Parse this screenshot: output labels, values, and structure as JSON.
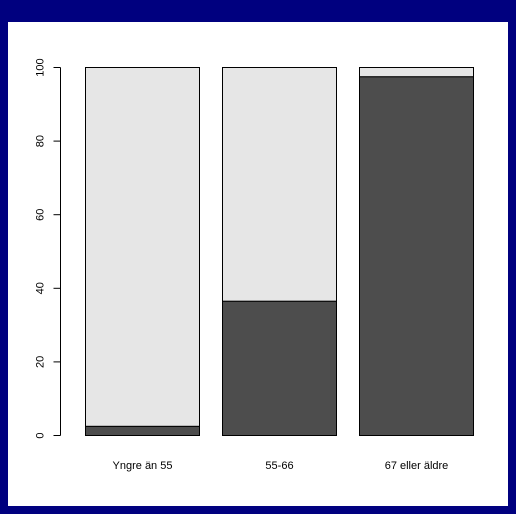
{
  "chart_data": {
    "type": "bar",
    "stacked": true,
    "percent_stacked": true,
    "categories": [
      "Yngre än 55",
      "55-66",
      "67 eller äldre"
    ],
    "series": [
      {
        "values": [
          2.5,
          36.5,
          97.5
        ],
        "color": "#4d4d4d"
      },
      {
        "values": [
          97.5,
          63.5,
          2.5
        ],
        "color": "#e6e6e6"
      }
    ],
    "title": "",
    "xlabel": "",
    "ylabel": "",
    "ylim": [
      0,
      100
    ],
    "yticks": [
      0,
      20,
      40,
      60,
      80,
      100
    ],
    "ytick_labels": [
      "0",
      "20",
      "40",
      "60",
      "80",
      "100"
    ],
    "grid": false,
    "legend": "none"
  },
  "colors": {
    "frame": "#00007f",
    "background": "#ffffff",
    "bar_outline": "#000000"
  }
}
